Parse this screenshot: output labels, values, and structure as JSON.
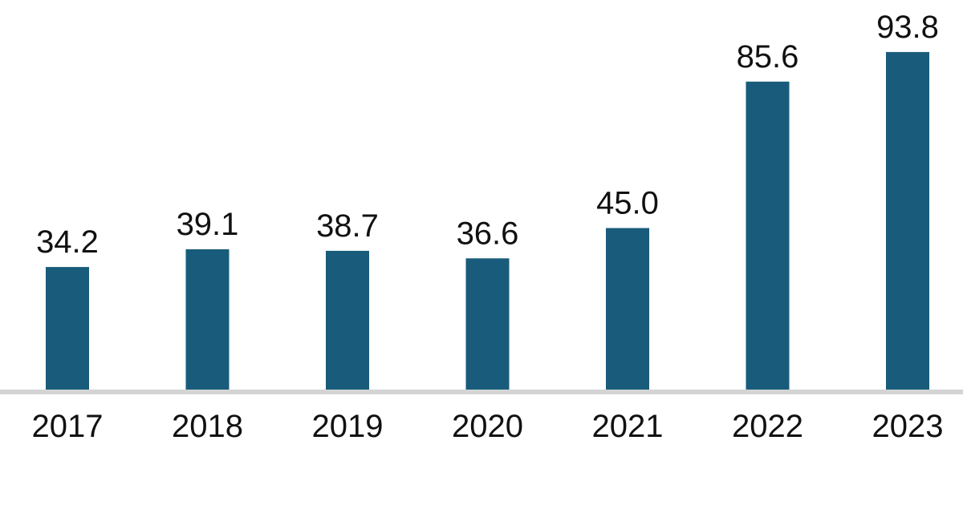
{
  "chart_data": {
    "type": "bar",
    "title": "",
    "xlabel": "",
    "ylabel": "",
    "categories": [
      "2017",
      "2018",
      "2019",
      "2020",
      "2021",
      "2022",
      "2023"
    ],
    "values": [
      34.2,
      39.1,
      38.7,
      36.6,
      45.0,
      85.6,
      93.8
    ],
    "value_labels": [
      "34.2",
      "39.1",
      "38.7",
      "36.6",
      "45.0",
      "85.6",
      "93.8"
    ],
    "ylim": [
      0,
      100
    ],
    "grid": false,
    "legend": "none",
    "colors": {
      "bar": "#195b7b",
      "baseline": "#d4d4d4",
      "text": "#111111"
    }
  }
}
